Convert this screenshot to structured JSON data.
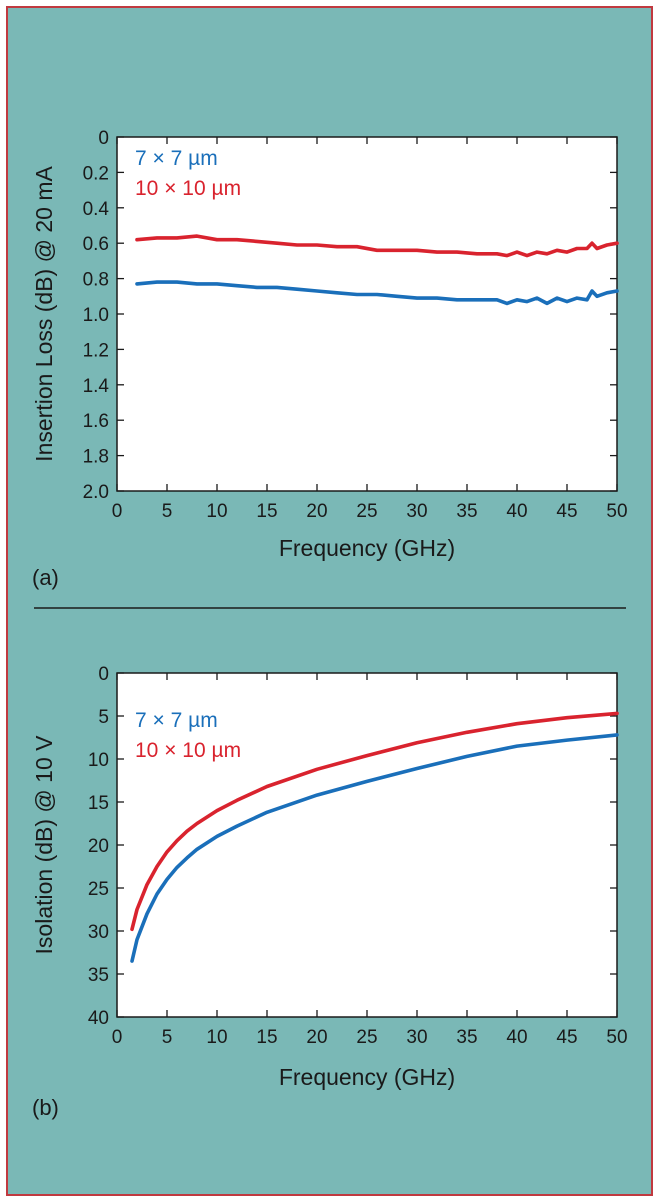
{
  "colors": {
    "background": "#7ab8b6",
    "frame": "#c0393f",
    "plot_background": "#ffffff",
    "series_7x7": "#1a6fba",
    "series_10x10": "#d9232e"
  },
  "chart_data": [
    {
      "type": "line",
      "panel_label": "(a)",
      "xlabel": "Frequency (GHz)",
      "ylabel": "Insertion Loss (dB) @ 20 mA",
      "xlim": [
        0,
        50
      ],
      "ylim": [
        0,
        2.0
      ],
      "y_inverted": true,
      "grid": false,
      "legend_position": "top-left",
      "x_ticks": [
        "0",
        "5",
        "10",
        "15",
        "20",
        "25",
        "30",
        "35",
        "40",
        "45",
        "50"
      ],
      "y_ticks": [
        "0",
        "0.2",
        "0.4",
        "0.6",
        "0.8",
        "1.0",
        "1.2",
        "1.4",
        "1.6",
        "1.8",
        "2.0"
      ],
      "series": [
        {
          "name": "7 × 7 µm",
          "color": "#1a6fba",
          "x": [
            2,
            4,
            6,
            8,
            10,
            12,
            14,
            16,
            18,
            20,
            22,
            24,
            26,
            28,
            30,
            32,
            34,
            36,
            38,
            39,
            40,
            41,
            42,
            43,
            44,
            45,
            46,
            47,
            47.5,
            48,
            49,
            50
          ],
          "y": [
            0.83,
            0.82,
            0.82,
            0.83,
            0.83,
            0.84,
            0.85,
            0.85,
            0.86,
            0.87,
            0.88,
            0.89,
            0.89,
            0.9,
            0.91,
            0.91,
            0.92,
            0.92,
            0.92,
            0.94,
            0.92,
            0.93,
            0.91,
            0.94,
            0.91,
            0.93,
            0.91,
            0.92,
            0.87,
            0.9,
            0.88,
            0.87
          ]
        },
        {
          "name": "10 × 10 µm",
          "color": "#d9232e",
          "x": [
            2,
            4,
            6,
            8,
            10,
            12,
            14,
            16,
            18,
            20,
            22,
            24,
            26,
            28,
            30,
            32,
            34,
            36,
            38,
            39,
            40,
            41,
            42,
            43,
            44,
            45,
            46,
            47,
            47.5,
            48,
            49,
            50
          ],
          "y": [
            0.58,
            0.57,
            0.57,
            0.56,
            0.58,
            0.58,
            0.59,
            0.6,
            0.61,
            0.61,
            0.62,
            0.62,
            0.64,
            0.64,
            0.64,
            0.65,
            0.65,
            0.66,
            0.66,
            0.67,
            0.65,
            0.67,
            0.65,
            0.66,
            0.64,
            0.65,
            0.63,
            0.63,
            0.6,
            0.63,
            0.61,
            0.6
          ]
        }
      ]
    },
    {
      "type": "line",
      "panel_label": "(b)",
      "xlabel": "Frequency (GHz)",
      "ylabel": "Isolation (dB) @ 10 V",
      "xlim": [
        0,
        50
      ],
      "ylim": [
        0,
        40
      ],
      "y_inverted": true,
      "grid": false,
      "legend_position": "top-left",
      "x_ticks": [
        "0",
        "5",
        "10",
        "15",
        "20",
        "25",
        "30",
        "35",
        "40",
        "45",
        "50"
      ],
      "y_ticks": [
        "0",
        "5",
        "10",
        "15",
        "20",
        "25",
        "30",
        "35",
        "40"
      ],
      "series": [
        {
          "name": "7 × 7 µm",
          "color": "#1a6fba",
          "x": [
            1.5,
            2,
            3,
            4,
            5,
            6,
            7,
            8,
            10,
            12,
            15,
            20,
            25,
            30,
            35,
            40,
            45,
            50
          ],
          "y": [
            33.5,
            31,
            28,
            25.7,
            24,
            22.6,
            21.5,
            20.5,
            19,
            17.8,
            16.2,
            14.2,
            12.6,
            11.1,
            9.7,
            8.5,
            7.8,
            7.2
          ]
        },
        {
          "name": "10 × 10 µm",
          "color": "#d9232e",
          "x": [
            1.5,
            2,
            3,
            4,
            5,
            6,
            7,
            8,
            10,
            12,
            15,
            20,
            25,
            30,
            35,
            40,
            45,
            50
          ],
          "y": [
            29.8,
            27.5,
            24.6,
            22.5,
            20.8,
            19.5,
            18.4,
            17.5,
            16,
            14.8,
            13.2,
            11.2,
            9.6,
            8.1,
            6.9,
            5.9,
            5.2,
            4.7
          ]
        }
      ]
    }
  ]
}
